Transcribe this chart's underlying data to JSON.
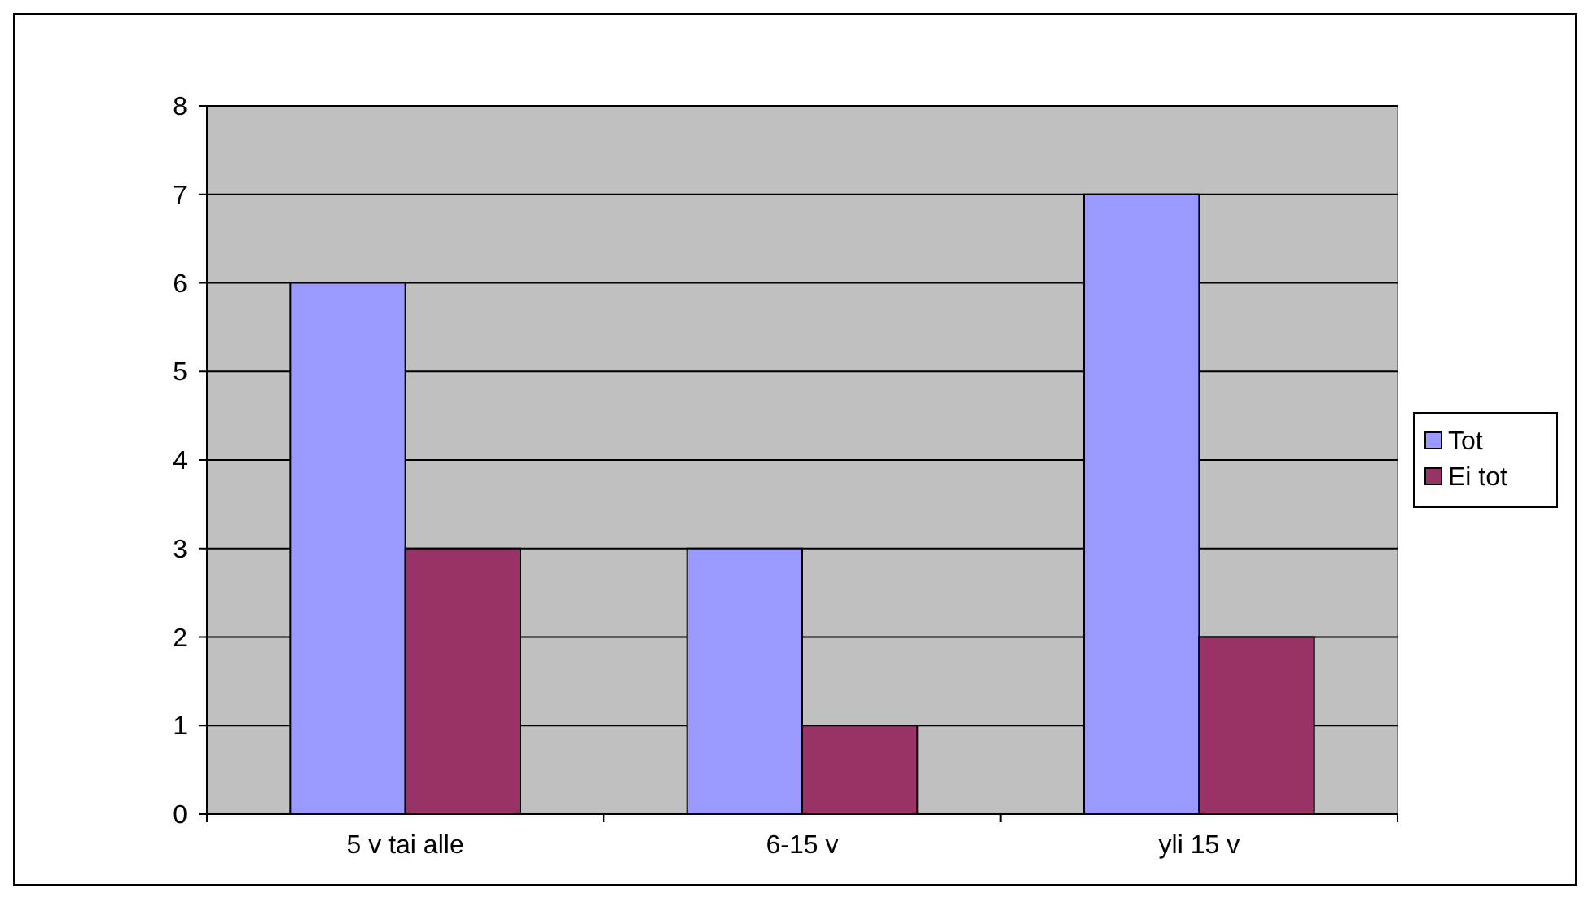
{
  "chart_data": {
    "type": "bar",
    "categories": [
      "5 v tai alle",
      "6-15 v",
      "yli 15 v"
    ],
    "series": [
      {
        "name": "Tot",
        "color": "#9999ff",
        "values": [
          6,
          3,
          7
        ]
      },
      {
        "name": "Ei tot",
        "color": "#993366",
        "values": [
          3,
          1,
          2
        ]
      }
    ],
    "ylim": [
      0,
      8
    ],
    "yticks": [
      0,
      1,
      2,
      3,
      4,
      5,
      6,
      7,
      8
    ],
    "grid": "y",
    "legend": "right"
  }
}
